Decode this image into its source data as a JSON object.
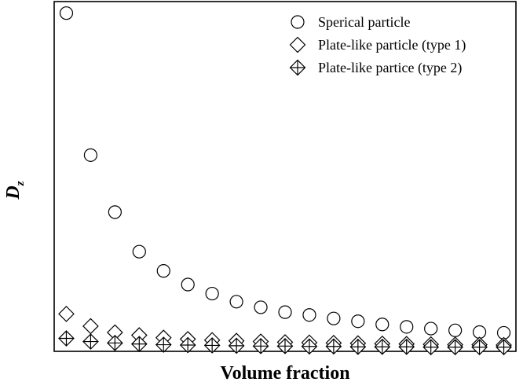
{
  "chart_data": {
    "type": "scatter",
    "title": "",
    "xlabel": "Volume fraction",
    "ylabel": {
      "main": "D",
      "sub": "z"
    },
    "x_ticks_shown": false,
    "y_ticks_shown": false,
    "grid": false,
    "legend_position": "top-right",
    "x": [
      1,
      2,
      3,
      4,
      5,
      6,
      7,
      8,
      9,
      10,
      11,
      12,
      13,
      14,
      15,
      16,
      17,
      18,
      19
    ],
    "xlim": [
      0.5,
      19.5
    ],
    "ylim": [
      0,
      1.0
    ],
    "series": [
      {
        "name": "Sperical particle",
        "marker": "circle",
        "values": [
          0.967,
          0.561,
          0.398,
          0.285,
          0.23,
          0.191,
          0.165,
          0.142,
          0.126,
          0.112,
          0.104,
          0.094,
          0.086,
          0.077,
          0.07,
          0.065,
          0.06,
          0.055,
          0.053
        ]
      },
      {
        "name": "Plate-like particle (type 1)",
        "marker": "diamond",
        "values": [
          0.107,
          0.072,
          0.054,
          0.046,
          0.039,
          0.035,
          0.032,
          0.03,
          0.028,
          0.026,
          0.025,
          0.024,
          0.023,
          0.022,
          0.021,
          0.02,
          0.019,
          0.019,
          0.018
        ]
      },
      {
        "name": "Plate-like partice (type 2)",
        "marker": "diamond-cross",
        "values": [
          0.037,
          0.028,
          0.024,
          0.021,
          0.019,
          0.018,
          0.017,
          0.016,
          0.015,
          0.015,
          0.014,
          0.014,
          0.013,
          0.013,
          0.013,
          0.012,
          0.012,
          0.012,
          0.012
        ]
      }
    ],
    "colors": {
      "marker_stroke": "#000000",
      "marker_fill": "#ffffff",
      "axes": "#000000"
    }
  }
}
